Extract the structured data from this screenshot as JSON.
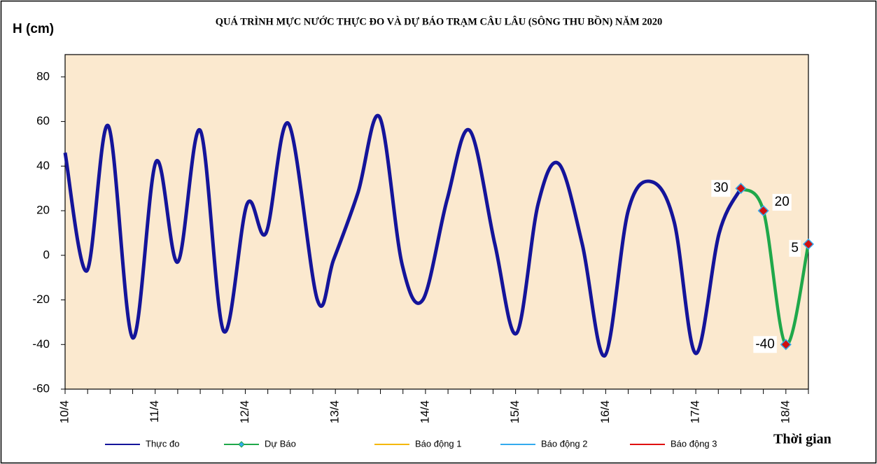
{
  "chart_data": {
    "type": "line",
    "title": "QUÁ TRÌNH MỰC NƯỚC THỰC ĐO VÀ DỰ BÁO TRẠM CÂU LÂU (SÔNG THU BỒN) NĂM  2020",
    "y_label": "H (cm)",
    "x_label": "Thời gian",
    "xlim": [
      0,
      8.25
    ],
    "xticks": [
      {
        "value": 0,
        "label": "10/4"
      },
      {
        "value": 1,
        "label": "11/4"
      },
      {
        "value": 2,
        "label": "12/4"
      },
      {
        "value": 3,
        "label": "13/4"
      },
      {
        "value": 4,
        "label": "14/4"
      },
      {
        "value": 5,
        "label": "15/4"
      },
      {
        "value": 6,
        "label": "16/4"
      },
      {
        "value": 7,
        "label": "17/4"
      },
      {
        "value": 8,
        "label": "18/4"
      }
    ],
    "xminorticks": [
      0.25,
      0.5,
      0.75,
      1.25,
      1.5,
      1.75,
      2.25,
      2.5,
      2.75,
      3.25,
      3.5,
      3.75,
      4.25,
      4.5,
      4.75,
      5.25,
      5.5,
      5.75,
      6.25,
      6.5,
      6.75,
      7.25,
      7.5,
      7.75,
      8.25
    ],
    "ylim": [
      -60,
      90
    ],
    "yticks": [
      -60,
      -40,
      -20,
      0,
      20,
      40,
      60,
      80
    ],
    "grid": false,
    "legend": "bottom",
    "series": [
      {
        "name": "Thực đo",
        "color": "#14149a",
        "x": [
          0,
          0.24,
          0.48,
          0.75,
          1.01,
          1.25,
          1.5,
          1.76,
          2.02,
          2.23,
          2.48,
          2.8,
          2.98,
          3.25,
          3.49,
          3.74,
          3.97,
          4.24,
          4.49,
          4.77,
          5.01,
          5.25,
          5.48,
          5.74,
          5.99,
          6.25,
          6.51,
          6.76,
          7.0,
          7.26,
          7.5
        ],
        "values": [
          46,
          -7,
          58,
          -37,
          42,
          -3,
          56,
          -34,
          23,
          10,
          59,
          -20,
          -2,
          28,
          62,
          -4,
          -20,
          25,
          56,
          5,
          -35,
          23,
          41,
          5,
          -45,
          20,
          33,
          15,
          -44,
          10,
          30
        ]
      },
      {
        "name": "Dự Báo",
        "color": "#1fa84a",
        "marker_color": "#d01010",
        "x": [
          7.5,
          7.75,
          8.0,
          8.25
        ],
        "values": [
          30,
          20,
          -40,
          5
        ]
      },
      {
        "name": "Báo động 1",
        "color": "#f5b800",
        "x": [],
        "values": []
      },
      {
        "name": "Báo động 2",
        "color": "#33aaee",
        "x": [],
        "values": []
      },
      {
        "name": "Báo động 3",
        "color": "#e01010",
        "x": [],
        "values": []
      }
    ]
  }
}
